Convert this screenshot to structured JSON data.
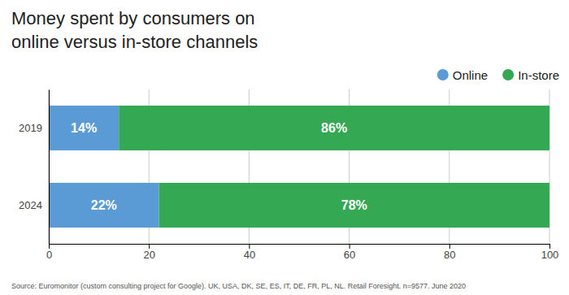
{
  "chart_data": {
    "type": "bar",
    "orientation": "horizontal",
    "stacked": true,
    "title": "Money spent by consumers on\nonline versus in-store channels",
    "categories": [
      "2024",
      "2019"
    ],
    "series": [
      {
        "name": "Online",
        "color": "#5b9bd5",
        "values": [
          22,
          14
        ],
        "value_labels": [
          "22%",
          "14%"
        ]
      },
      {
        "name": "In-store",
        "color": "#34a853",
        "values": [
          78,
          86
        ],
        "value_labels": [
          "78%",
          "86%"
        ]
      }
    ],
    "xlim": [
      0,
      100
    ],
    "xticks": [
      0,
      20,
      40,
      60,
      80,
      100
    ],
    "grid": true,
    "data_labels": true,
    "legend": "upper right",
    "annotations": [
      "Source: Euromonitor (custom consulting project for Google). UK, USA, DK, SE, ES, IT, DE, FR, PL, NL. Retail Foresight. n=9577. June 2020"
    ]
  }
}
